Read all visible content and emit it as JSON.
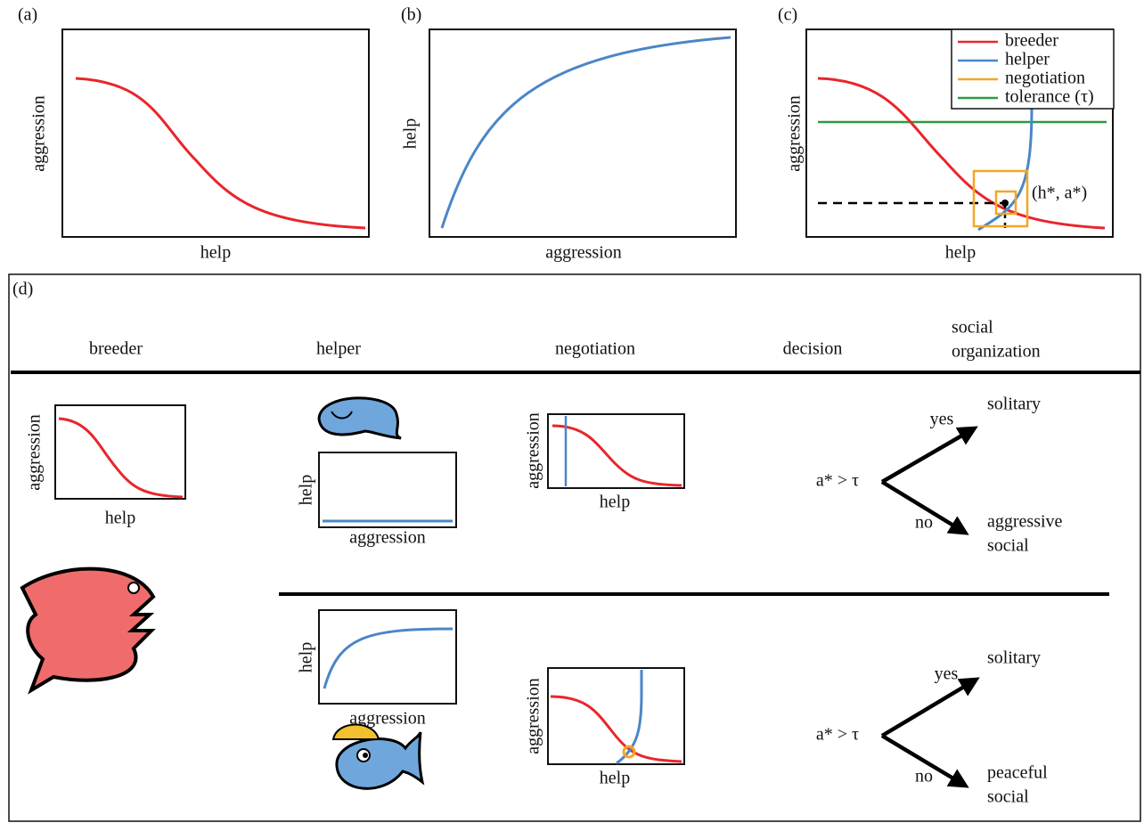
{
  "panel_a": {
    "label": "(a)",
    "x_label": "help",
    "y_label": "aggression"
  },
  "panel_b": {
    "label": "(b)",
    "x_label": "aggression",
    "y_label": "help"
  },
  "panel_c": {
    "label": "(c)",
    "x_label": "help",
    "y_label": "aggression",
    "legend": [
      "breeder",
      "helper",
      "negotiation",
      "tolerance (τ)"
    ],
    "point_label": "(h*, a*)"
  },
  "panel_d": {
    "label": "(d)",
    "columns": [
      [
        "breeder"
      ],
      [
        "helper"
      ],
      [
        "negotiation"
      ],
      [
        "decision"
      ],
      [
        "social",
        "organization"
      ]
    ],
    "breeder_plot": {
      "x_label": "help",
      "y_label": "aggression"
    },
    "rows": [
      {
        "helper_plot": {
          "x_label": "aggression",
          "y_label": "help"
        },
        "negotiation_plot": {
          "x_label": "help",
          "y_label": "aggression"
        },
        "condition": "a* > τ",
        "yes": "yes",
        "no": "no",
        "yes_outcome": [
          "solitary"
        ],
        "no_outcome": [
          "aggressive",
          "social"
        ]
      },
      {
        "helper_plot": {
          "x_label": "aggression",
          "y_label": "help"
        },
        "negotiation_plot": {
          "x_label": "help",
          "y_label": "aggression"
        },
        "condition": "a* > τ",
        "yes": "yes",
        "no": "no",
        "yes_outcome": [
          "solitary"
        ],
        "no_outcome": [
          "peaceful",
          "social"
        ]
      }
    ]
  }
}
